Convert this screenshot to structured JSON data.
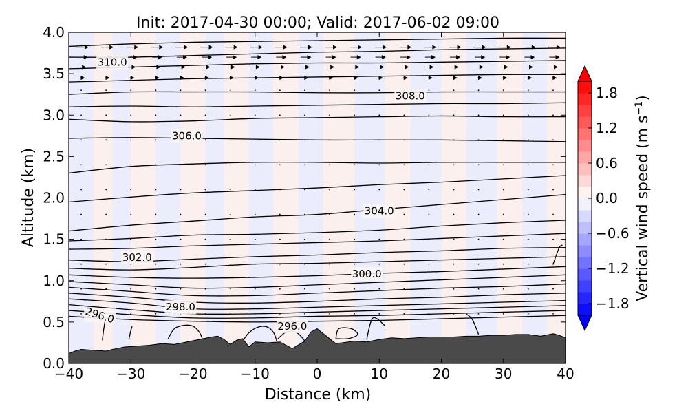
{
  "chart_data": {
    "type": "contour-cross-section",
    "title": "Init: 2017-04-30 00:00; Valid: 2017-06-02 09:00",
    "xlabel": "Distance (km)",
    "ylabel": "Altitude (km)",
    "xlim": [
      -40,
      40
    ],
    "ylim": [
      0.0,
      4.0
    ],
    "x_ticks": [
      {
        "value": -40,
        "label": "−40"
      },
      {
        "value": -30,
        "label": "−30"
      },
      {
        "value": -20,
        "label": "−20"
      },
      {
        "value": -10,
        "label": "−10"
      },
      {
        "value": 0,
        "label": "0"
      },
      {
        "value": 10,
        "label": "10"
      },
      {
        "value": 20,
        "label": "20"
      },
      {
        "value": 30,
        "label": "30"
      },
      {
        "value": 40,
        "label": "40"
      }
    ],
    "y_ticks": [
      {
        "value": 0.0,
        "label": "0.0"
      },
      {
        "value": 0.5,
        "label": "0.5"
      },
      {
        "value": 1.0,
        "label": "1.0"
      },
      {
        "value": 1.5,
        "label": "1.5"
      },
      {
        "value": 2.0,
        "label": "2.0"
      },
      {
        "value": 2.5,
        "label": "2.5"
      },
      {
        "value": 3.0,
        "label": "3.0"
      },
      {
        "value": 3.5,
        "label": "3.5"
      },
      {
        "value": 4.0,
        "label": "4.0"
      }
    ],
    "colorbar": {
      "label": "Vertical wind speed (m s",
      "label_sup": "−1",
      "label_close": ")",
      "range": [
        -2.0,
        2.0
      ],
      "levels": [
        -2.0,
        -1.8,
        -1.6,
        -1.4,
        -1.2,
        -1.0,
        -0.8,
        -0.6,
        -0.4,
        -0.2,
        0.0,
        0.2,
        0.4,
        0.6,
        0.8,
        1.0,
        1.2,
        1.4,
        1.6,
        1.8,
        2.0
      ],
      "ticks": [
        {
          "value": 1.8,
          "label": "1.8"
        },
        {
          "value": 1.2,
          "label": "1.2"
        },
        {
          "value": 0.6,
          "label": "0.6"
        },
        {
          "value": 0.0,
          "label": "0.0"
        },
        {
          "value": -0.6,
          "label": "−0.6"
        },
        {
          "value": -1.2,
          "label": "−1.2"
        },
        {
          "value": -1.8,
          "label": "−1.8"
        }
      ],
      "extend": "both",
      "colormap": "bwr"
    },
    "terrain": {
      "color": "#4a4a4a",
      "x": [
        -40,
        -39,
        -38,
        -36,
        -34,
        -33,
        -31,
        -29,
        -27,
        -25,
        -23,
        -21,
        -19,
        -17,
        -16,
        -15,
        -14,
        -13,
        -12,
        -11,
        -10,
        -8,
        -6,
        -4,
        -2,
        -1,
        0,
        1,
        2,
        3,
        4,
        6,
        8,
        10,
        12,
        14,
        16,
        18,
        20,
        22,
        24,
        26,
        28,
        30,
        32,
        34,
        36,
        38,
        39,
        40
      ],
      "y": [
        0.12,
        0.15,
        0.17,
        0.16,
        0.15,
        0.17,
        0.2,
        0.21,
        0.22,
        0.24,
        0.23,
        0.26,
        0.29,
        0.32,
        0.33,
        0.29,
        0.23,
        0.28,
        0.3,
        0.2,
        0.26,
        0.25,
        0.26,
        0.18,
        0.27,
        0.38,
        0.42,
        0.36,
        0.3,
        0.24,
        0.25,
        0.27,
        0.26,
        0.29,
        0.31,
        0.3,
        0.31,
        0.32,
        0.32,
        0.32,
        0.33,
        0.33,
        0.34,
        0.34,
        0.35,
        0.35,
        0.33,
        0.36,
        0.34,
        0.31
      ]
    },
    "background_bands": [
      {
        "x0": -40,
        "x1": -36,
        "w": -0.05
      },
      {
        "x0": -36,
        "x1": -33,
        "w": 0.05
      },
      {
        "x0": -33,
        "x1": -30,
        "w": -0.05
      },
      {
        "x0": -30,
        "x1": -26,
        "w": 0.05
      },
      {
        "x0": -26,
        "x1": -22,
        "w": -0.05
      },
      {
        "x0": -22,
        "x1": -18,
        "w": 0.05
      },
      {
        "x0": -18,
        "x1": -15,
        "w": -0.05
      },
      {
        "x0": -15,
        "x1": -11,
        "w": 0.05
      },
      {
        "x0": -11,
        "x1": -7,
        "w": -0.05
      },
      {
        "x0": -7,
        "x1": -3,
        "w": 0.05
      },
      {
        "x0": -3,
        "x1": 1,
        "w": -0.05
      },
      {
        "x0": 1,
        "x1": 6,
        "w": 0.05
      },
      {
        "x0": 6,
        "x1": 11,
        "w": -0.05
      },
      {
        "x0": 11,
        "x1": 15,
        "w": 0.05
      },
      {
        "x0": 15,
        "x1": 20,
        "w": -0.05
      },
      {
        "x0": 20,
        "x1": 24,
        "w": 0.05
      },
      {
        "x0": 24,
        "x1": 29,
        "w": -0.05
      },
      {
        "x0": 29,
        "x1": 33,
        "w": 0.05
      },
      {
        "x0": 33,
        "x1": 37,
        "w": -0.05
      },
      {
        "x0": 37,
        "x1": 40,
        "w": 0.05
      }
    ],
    "isentropes": {
      "x": [
        -40,
        -30,
        -20,
        -10,
        0,
        10,
        20,
        30,
        40
      ],
      "lines": [
        {
          "theta": 310.0,
          "y": [
            3.83,
            3.86,
            3.88,
            3.89,
            3.9,
            3.91,
            3.92,
            3.93,
            3.93
          ]
        },
        {
          "y": [
            3.7,
            3.7,
            3.72,
            3.74,
            3.76,
            3.77,
            3.79,
            3.8,
            3.81
          ]
        },
        {
          "y": [
            3.56,
            3.58,
            3.6,
            3.62,
            3.63,
            3.63,
            3.64,
            3.65,
            3.66
          ]
        },
        {
          "y": [
            3.4,
            3.42,
            3.44,
            3.45,
            3.46,
            3.47,
            3.48,
            3.49,
            3.49
          ]
        },
        {
          "y": [
            3.25,
            3.28,
            3.28,
            3.28,
            3.27,
            3.27,
            3.28,
            3.28,
            3.28
          ]
        },
        {
          "theta": 308.0,
          "y": [
            3.1,
            3.11,
            3.1,
            3.11,
            3.12,
            3.13,
            3.14,
            3.14,
            3.15
          ]
        },
        {
          "y": [
            2.95,
            2.92,
            2.93,
            2.96,
            2.97,
            2.98,
            2.99,
            2.98,
            2.98
          ]
        },
        {
          "theta": 306.0,
          "y": [
            2.72,
            2.73,
            2.72,
            2.71,
            2.7,
            2.7,
            2.7,
            2.69,
            2.68
          ]
        },
        {
          "y": [
            2.3,
            2.38,
            2.41,
            2.43,
            2.43,
            2.42,
            2.43,
            2.43,
            2.43
          ]
        },
        {
          "y": [
            1.95,
            2.01,
            2.06,
            2.09,
            2.12,
            2.16,
            2.19,
            2.23,
            2.27
          ]
        },
        {
          "theta": 304.0,
          "y": [
            1.6,
            1.67,
            1.72,
            1.77,
            1.8,
            1.86,
            1.92,
            1.98,
            2.04
          ]
        },
        {
          "y": [
            1.48,
            1.51,
            1.55,
            1.56,
            1.58,
            1.61,
            1.66,
            1.7,
            1.73
          ]
        },
        {
          "y": [
            1.38,
            1.39,
            1.42,
            1.44,
            1.46,
            1.48,
            1.51,
            1.54,
            1.57
          ]
        },
        {
          "theta": 302.0,
          "y": [
            1.25,
            1.23,
            1.26,
            1.29,
            1.31,
            1.34,
            1.36,
            1.39,
            1.4
          ]
        },
        {
          "y": [
            1.15,
            1.13,
            1.16,
            1.2,
            1.21,
            1.23,
            1.25,
            1.27,
            1.29
          ]
        },
        {
          "theta": 300.0,
          "y": [
            1.07,
            1.04,
            1.03,
            1.04,
            1.06,
            1.09,
            1.11,
            1.14,
            1.17
          ]
        },
        {
          "y": [
            0.99,
            0.95,
            0.91,
            0.92,
            0.95,
            0.98,
            1.01,
            1.04,
            1.07
          ]
        },
        {
          "y": [
            0.92,
            0.87,
            0.82,
            0.82,
            0.85,
            0.88,
            0.91,
            0.93,
            0.96
          ]
        },
        {
          "y": [
            0.85,
            0.8,
            0.74,
            0.73,
            0.75,
            0.78,
            0.8,
            0.83,
            0.85
          ]
        },
        {
          "theta": 298.0,
          "y": [
            0.78,
            0.73,
            0.66,
            0.66,
            0.68,
            0.7,
            0.72,
            0.74,
            0.76
          ]
        },
        {
          "y": [
            0.71,
            0.65,
            0.6,
            0.6,
            0.62,
            0.64,
            0.66,
            0.68,
            0.7
          ]
        },
        {
          "y": [
            0.64,
            0.59,
            0.55,
            0.55,
            0.57,
            0.58,
            0.6,
            0.62,
            0.64
          ]
        },
        {
          "theta": 296.0,
          "y": [
            0.57,
            0.53,
            0.51,
            0.5,
            0.51,
            0.52,
            0.54,
            0.56,
            0.58
          ]
        }
      ],
      "labels": [
        {
          "text": "310.0",
          "x": -33,
          "y": 3.64
        },
        {
          "text": "308.0",
          "x": 15,
          "y": 3.23
        },
        {
          "text": "306.0",
          "x": -21,
          "y": 2.75
        },
        {
          "text": "304.0",
          "x": 10,
          "y": 1.84
        },
        {
          "text": "302.0",
          "x": -29,
          "y": 1.28
        },
        {
          "text": "300.0",
          "x": 8,
          "y": 1.08
        },
        {
          "text": "298.0",
          "x": -22,
          "y": 0.68
        },
        {
          "text": "296.0",
          "x": -35,
          "y": 0.58,
          "rotate": 18
        },
        {
          "text": "296.0",
          "x": -4,
          "y": 0.45
        }
      ]
    },
    "closed_contours": [
      {
        "x": [
          -34.6,
          -34.4,
          -34.2,
          -34.4,
          -34.6
        ],
        "y": [
          0.28,
          0.4,
          0.5,
          0.4,
          0.28
        ]
      },
      {
        "x": [
          -30.3,
          -30.0,
          -29.8,
          -30.0,
          -30.3
        ],
        "y": [
          0.3,
          0.4,
          0.45,
          0.4,
          0.3
        ]
      },
      {
        "x": [
          -24.0,
          -23.0,
          -21.5,
          -20.0,
          -19.0,
          -18.5
        ],
        "y": [
          0.3,
          0.42,
          0.46,
          0.45,
          0.38,
          0.3
        ]
      },
      {
        "x": [
          -12.0,
          -11.0,
          -9.5,
          -8.0,
          -7.0,
          -6.5
        ],
        "y": [
          0.27,
          0.37,
          0.44,
          0.44,
          0.37,
          0.27
        ]
      },
      {
        "x": [
          -6.3,
          -5.0,
          -3.5,
          -2.5,
          -2.0
        ],
        "y": [
          0.3,
          0.38,
          0.38,
          0.32,
          0.27
        ]
      },
      {
        "x": [
          3.0,
          3.5,
          5.5,
          6.5,
          5.0,
          3.0
        ],
        "y": [
          0.3,
          0.42,
          0.42,
          0.35,
          0.3,
          0.3
        ]
      },
      {
        "x": [
          8.0,
          9.0,
          11.0
        ],
        "y": [
          0.3,
          0.55,
          0.45
        ]
      },
      {
        "x": [
          26.0,
          25.0,
          24.0
        ],
        "y": [
          0.35,
          0.53,
          0.6
        ]
      },
      {
        "x": [
          38.0,
          39.0,
          39.5
        ],
        "y": [
          1.2,
          1.4,
          1.43
        ]
      }
    ],
    "wind_vectors": {
      "rows": [
        {
          "y": 3.82,
          "u": 1.0
        },
        {
          "y": 3.7,
          "u": 0.8
        },
        {
          "y": 3.58,
          "u": 0.45
        },
        {
          "y": 3.45,
          "u": 0.2
        }
      ],
      "x_spacing": 4
    },
    "colors": {
      "terrain": "#4a4a4a",
      "contour": "#000000",
      "light_blue": "#ecedfc",
      "light_red": "#fcf0ef",
      "vectors": "#000000"
    }
  }
}
